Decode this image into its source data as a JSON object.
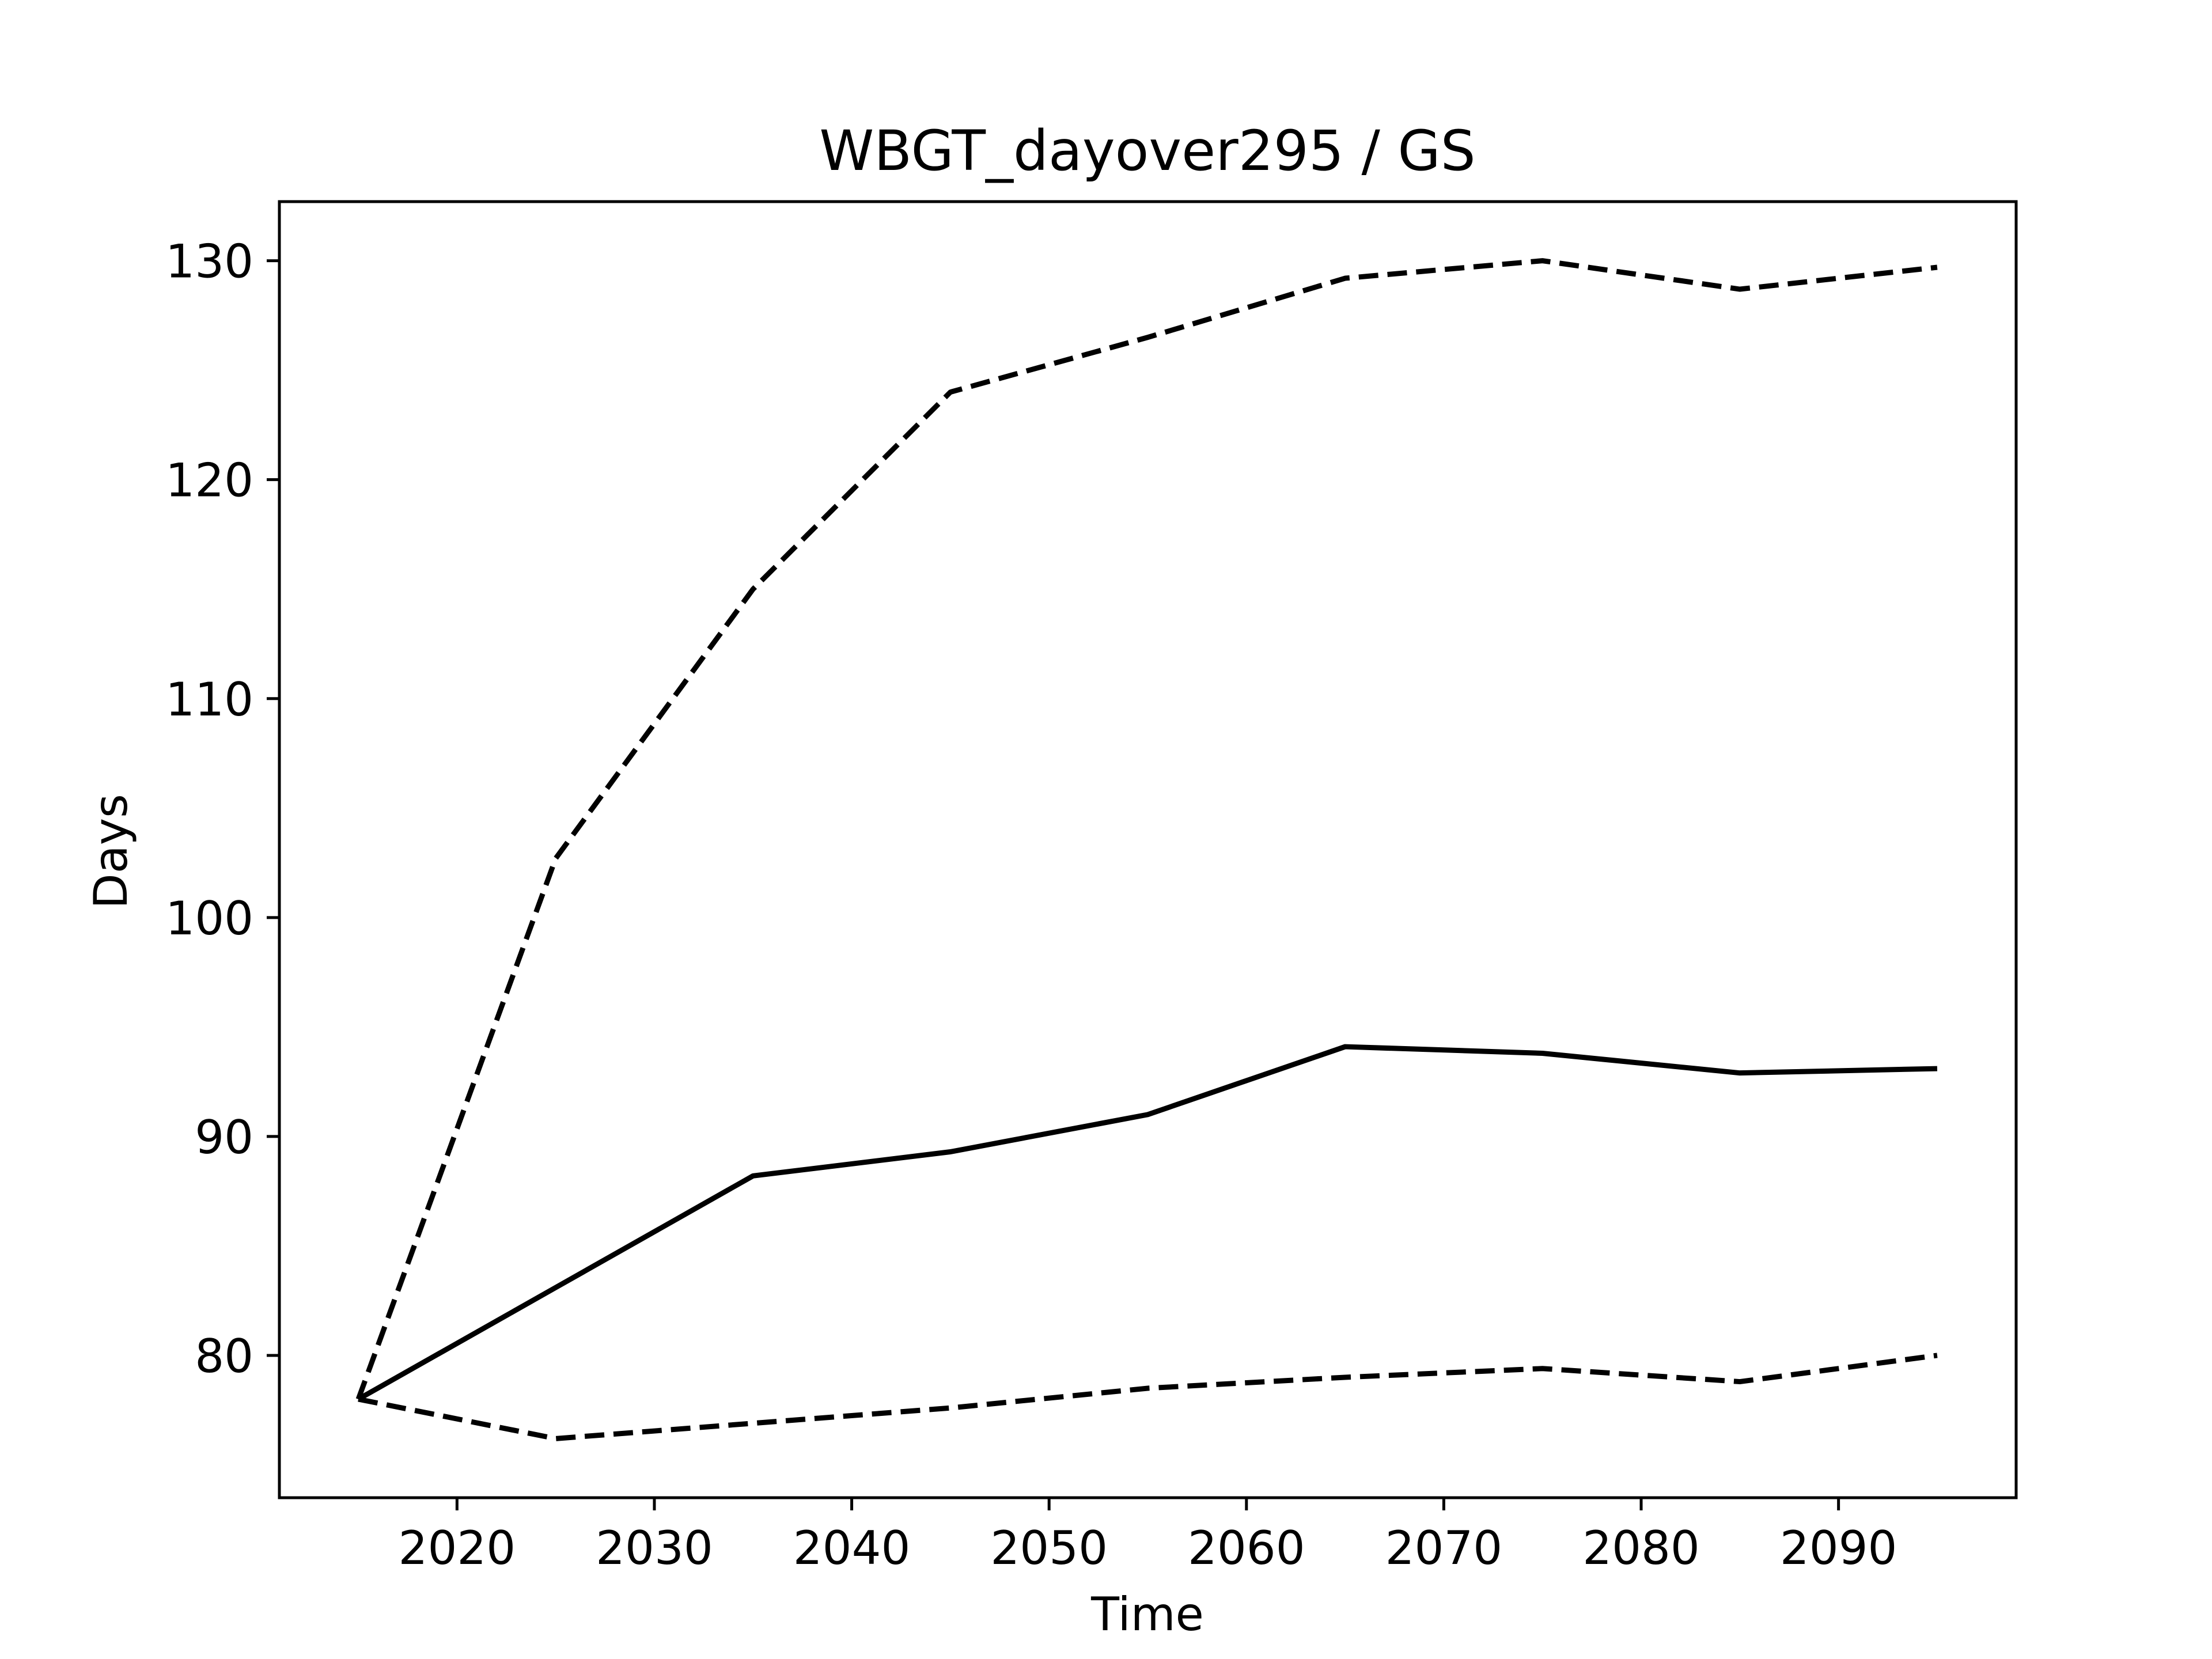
{
  "chart_data": {
    "type": "line",
    "title": "WBGT_dayover295 / GS",
    "xlabel": "Time",
    "ylabel": "Days",
    "xlim": [
      2011,
      2099
    ],
    "ylim": [
      73.5,
      132.7
    ],
    "xticks": [
      2020,
      2030,
      2040,
      2050,
      2060,
      2070,
      2080,
      2090
    ],
    "yticks": [
      80,
      90,
      100,
      110,
      120,
      130
    ],
    "grid": false,
    "legend": "none",
    "x": [
      2015,
      2025,
      2035,
      2045,
      2055,
      2065,
      2075,
      2085,
      2095
    ],
    "series": [
      {
        "style": "dashed",
        "color": "#000000",
        "values": [
          78.0,
          102.7,
          115.0,
          124.0,
          126.5,
          129.2,
          130.0,
          128.7,
          129.7
        ]
      },
      {
        "style": "solid",
        "color": "#000000",
        "values": [
          78.0,
          83.1,
          88.2,
          89.3,
          91.0,
          94.1,
          93.8,
          92.9,
          93.1
        ]
      },
      {
        "style": "dashed",
        "color": "#000000",
        "values": [
          78.0,
          76.2,
          76.9,
          77.6,
          78.5,
          79.0,
          79.4,
          78.8,
          80.0
        ]
      }
    ]
  }
}
